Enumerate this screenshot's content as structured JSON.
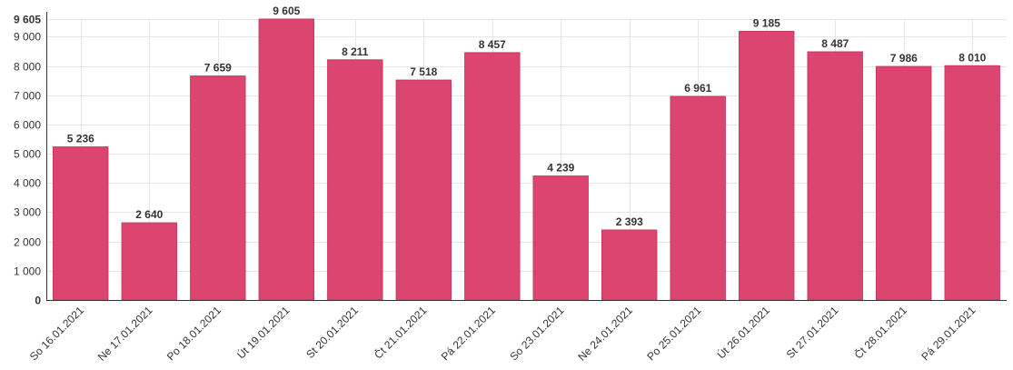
{
  "chart_data": {
    "type": "bar",
    "title": "",
    "xlabel": "",
    "ylabel": "",
    "categories": [
      "So 16.01.2021",
      "Ne 17.01.2021",
      "Po 18.01.2021",
      "Út 19.01.2021",
      "St 20.01.2021",
      "Čt 21.01.2021",
      "Pá 22.01.2021",
      "So 23.01.2021",
      "Ne 24.01.2021",
      "Po 25.01.2021",
      "Út 26.01.2021",
      "St 27.01.2021",
      "Čt 28.01.2021",
      "Pá 29.01.2021"
    ],
    "values": [
      5236,
      2640,
      7659,
      9605,
      8211,
      7518,
      8457,
      4239,
      2393,
      6961,
      9185,
      8487,
      7986,
      8010
    ],
    "value_labels": [
      "5 236",
      "2 640",
      "7 659",
      "9 605",
      "8 211",
      "7 518",
      "8 457",
      "4 239",
      "2 393",
      "6 961",
      "9 185",
      "8 487",
      "7 986",
      "8 010"
    ],
    "ylim": [
      0,
      9605
    ],
    "y_ticks": [
      0,
      1000,
      2000,
      3000,
      4000,
      5000,
      6000,
      7000,
      8000,
      9000,
      9605
    ],
    "y_tick_labels": [
      "0",
      "1 000",
      "2 000",
      "3 000",
      "4 000",
      "5 000",
      "6 000",
      "7 000",
      "8 000",
      "9 000",
      "9 605"
    ],
    "grid": true,
    "legend": "none",
    "bar_color": "#dc4570"
  }
}
